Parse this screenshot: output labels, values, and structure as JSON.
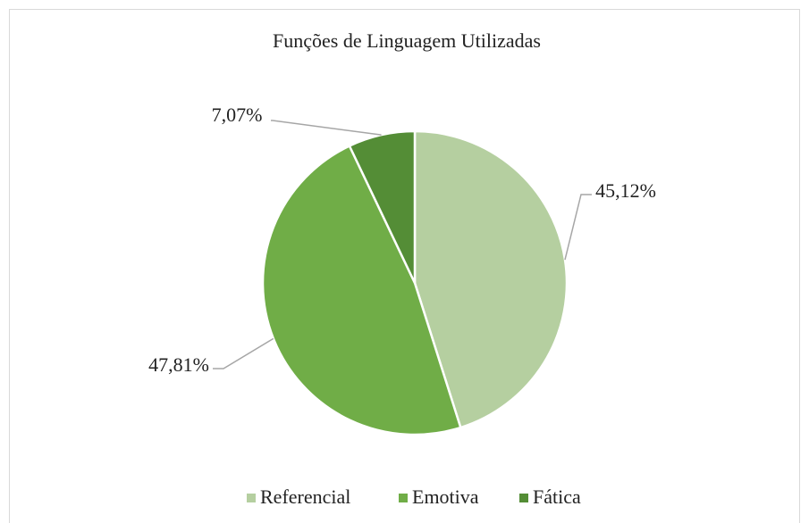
{
  "chart_data": {
    "type": "pie",
    "title": "Funções de Linguagem Utilizadas",
    "categories": [
      "Referencial",
      "Emotiva",
      "Fática"
    ],
    "values": [
      45.12,
      47.81,
      7.07
    ],
    "value_labels": [
      "45,12%",
      "47,81%",
      "7,07%"
    ],
    "colors": [
      "#b5cfa0",
      "#70ad47",
      "#548d36"
    ],
    "legend": "bottom"
  }
}
